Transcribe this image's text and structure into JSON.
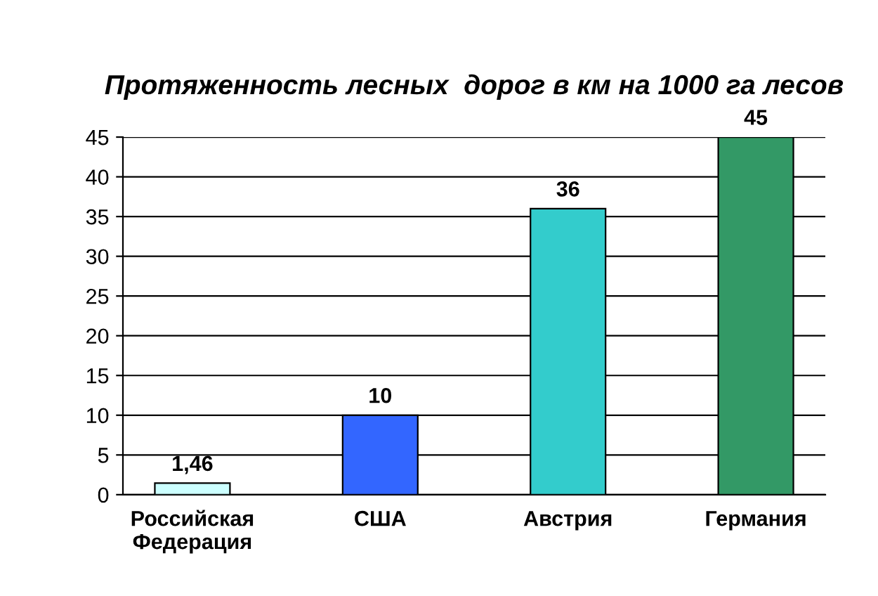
{
  "chart_data": {
    "type": "bar",
    "title": "Протяженность лесных  дорог в км на 1000 га лесов",
    "categories": [
      "Российская\nФедерация",
      "США",
      "Австрия",
      "Германия"
    ],
    "values": [
      1.46,
      10,
      36,
      45
    ],
    "colors": [
      "#ccffff",
      "#3366ff",
      "#33cccc",
      "#339966"
    ],
    "value_labels": [
      "1,46",
      "10",
      "36",
      "45"
    ],
    "ylim": [
      0,
      45
    ],
    "yticks": [
      0,
      5,
      10,
      15,
      20,
      25,
      30,
      35,
      40,
      45
    ],
    "grid": "y"
  }
}
